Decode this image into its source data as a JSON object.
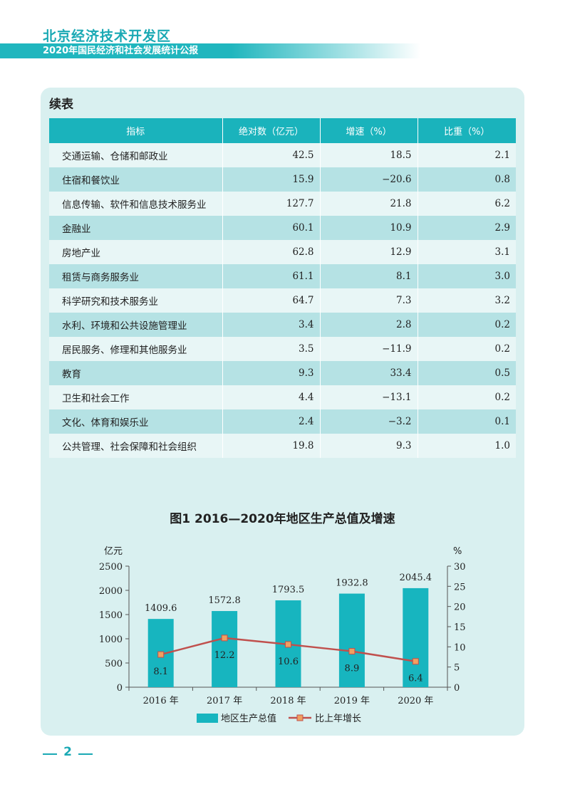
{
  "header": {
    "title": "北京经济技术开发区",
    "subtitle": "2020年国民经济和社会发展统计公报"
  },
  "table": {
    "caption": "续表",
    "headers": [
      "指标",
      "绝对数（亿元）",
      "增速（%）",
      "比重（%）"
    ],
    "rows": [
      [
        "交通运输、仓储和邮政业",
        "42.5",
        "18.5",
        "2.1"
      ],
      [
        "住宿和餐饮业",
        "15.9",
        "−20.6",
        "0.8"
      ],
      [
        "信息传输、软件和信息技术服务业",
        "127.7",
        "21.8",
        "6.2"
      ],
      [
        "金融业",
        "60.1",
        "10.9",
        "2.9"
      ],
      [
        "房地产业",
        "62.8",
        "12.9",
        "3.1"
      ],
      [
        "租赁与商务服务业",
        "61.1",
        "8.1",
        "3.0"
      ],
      [
        "科学研究和技术服务业",
        "64.7",
        "7.3",
        "3.2"
      ],
      [
        "水利、环境和公共设施管理业",
        "3.4",
        "2.8",
        "0.2"
      ],
      [
        "居民服务、修理和其他服务业",
        "3.5",
        "−11.9",
        "0.2"
      ],
      [
        "教育",
        "9.3",
        "33.4",
        "0.5"
      ],
      [
        "卫生和社会工作",
        "4.4",
        "−13.1",
        "0.2"
      ],
      [
        "文化、体育和娱乐业",
        "2.4",
        "−3.2",
        "0.1"
      ],
      [
        "公共管理、社会保障和社会组织",
        "19.8",
        "9.3",
        "1.0"
      ]
    ]
  },
  "chart_data": {
    "type": "bar",
    "title": "图1  2016—2020年地区生产总值及增速",
    "categories": [
      "2016 年",
      "2017 年",
      "2018 年",
      "2019 年",
      "2020 年"
    ],
    "left_axis": {
      "unit": "亿元",
      "range": [
        0,
        2500
      ],
      "ticks": [
        0,
        500,
        1000,
        1500,
        2000,
        2500
      ]
    },
    "right_axis": {
      "unit": "%",
      "range": [
        0,
        30
      ],
      "ticks": [
        0,
        5,
        10,
        15,
        20,
        25,
        30
      ]
    },
    "series": [
      {
        "name": "地区生产总值",
        "type": "bar",
        "axis": "left",
        "color": "#17b5bf",
        "values": [
          1409.6,
          1572.8,
          1793.5,
          1932.8,
          2045.4
        ],
        "labels": [
          "1409.6",
          "1572.8",
          "1793.5",
          "1932.8",
          "2045.4"
        ]
      },
      {
        "name": "比上年增长",
        "type": "line",
        "axis": "right",
        "color": "#c0504d",
        "marker_color": "#f0a060",
        "values": [
          8.1,
          12.2,
          10.6,
          8.9,
          6.4
        ],
        "labels": [
          "8.1",
          "12.2",
          "10.6",
          "8.9",
          "6.4"
        ]
      }
    ],
    "legend": "bottom"
  },
  "footer": {
    "page_number": "2"
  }
}
